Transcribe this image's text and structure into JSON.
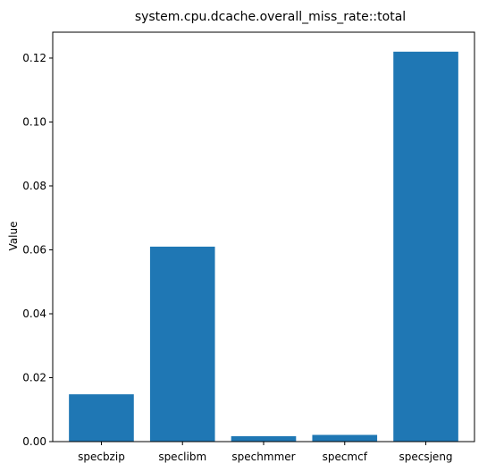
{
  "chart_data": {
    "type": "bar",
    "title": "system.cpu.dcache.overall_miss_rate::total",
    "xlabel": "",
    "ylabel": "Value",
    "categories": [
      "specbzip",
      "speclibm",
      "spechmmer",
      "specmcf",
      "specsjeng"
    ],
    "values": [
      0.0148,
      0.061,
      0.0017,
      0.0021,
      0.122
    ],
    "ylim": [
      0,
      0.1281
    ],
    "yticks": [
      0.0,
      0.02,
      0.04,
      0.06,
      0.08,
      0.1,
      0.12
    ],
    "ytick_labels": [
      "0.00",
      "0.02",
      "0.04",
      "0.06",
      "0.08",
      "0.10",
      "0.12"
    ],
    "grid": false,
    "legend": "none",
    "bar_color": "#1f77b4"
  }
}
